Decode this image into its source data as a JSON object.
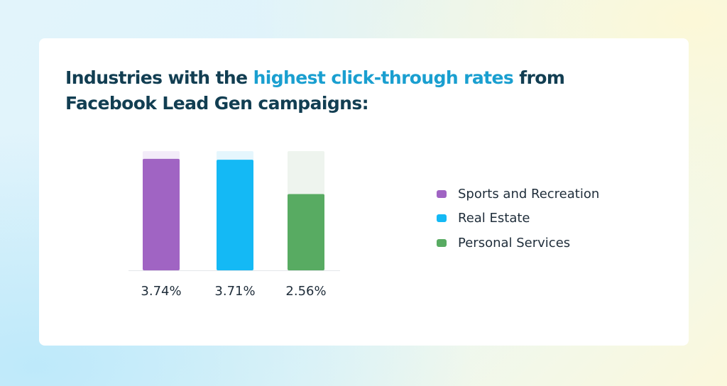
{
  "title": {
    "part1": "Industries with the ",
    "highlight": "highest click-through rates",
    "part2": " from Facebook Lead Gen campaigns:"
  },
  "colors": {
    "title": "#123e52",
    "highlight": "#1a9fd0",
    "sports": "#a064c3",
    "real_estate": "#14b9f5",
    "personal_services": "#58ab62"
  },
  "chart_data": {
    "type": "bar",
    "categories": [
      "Sports and Recreation",
      "Real Estate",
      "Personal Services"
    ],
    "values": [
      3.74,
      3.71,
      2.56
    ],
    "value_labels": [
      "3.74%",
      "3.71%",
      "2.56%"
    ],
    "unit": "%",
    "ylim": [
      0,
      4
    ],
    "grid": false,
    "legend_position": "right",
    "series_colors": [
      "#a064c3",
      "#14b9f5",
      "#58ab62"
    ],
    "track_colors": [
      "#f3ecf9",
      "#e5f6fd",
      "#eef4ee"
    ]
  },
  "legend": [
    {
      "label": "Sports and Recreation",
      "color": "#a064c3"
    },
    {
      "label": "Real Estate",
      "color": "#14b9f5"
    },
    {
      "label": "Personal Services",
      "color": "#58ab62"
    }
  ]
}
